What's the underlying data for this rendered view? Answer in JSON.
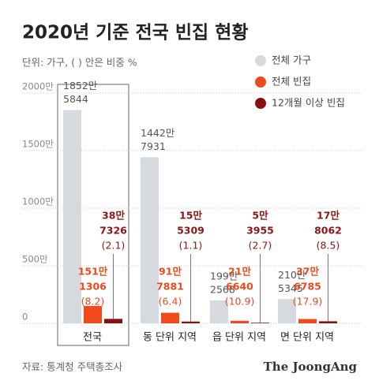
{
  "chart_data": {
    "type": "bar",
    "title": "2020년 기준 전국 빈집 현황",
    "subtitle": "단위: 가구, ( ) 안은 비중 %",
    "source": "자료: 통계청 주택총조사",
    "brand": "The JoongAng",
    "categories": [
      "전국",
      "동 단위 지역",
      "읍 단위 지역",
      "면 단위 지역"
    ],
    "ylim": [
      0,
      20000000
    ],
    "yticks": [
      {
        "value": 0,
        "label": "0"
      },
      {
        "value": 5000000,
        "label": "500만"
      },
      {
        "value": 10000000,
        "label": "1000만"
      },
      {
        "value": 15000000,
        "label": "1500만"
      },
      {
        "value": 20000000,
        "label": "2000만"
      }
    ],
    "grid": true,
    "series": [
      {
        "name": "전체 가구",
        "color": "#d6dadf",
        "label_color": "#555555",
        "values": [
          18525844,
          14427931,
          1992568,
          2105345
        ],
        "value_labels": [
          [
            "1852만",
            "5844"
          ],
          [
            "1442만",
            "7931"
          ],
          [
            "199만",
            "2568"
          ],
          [
            "210만",
            "5345"
          ]
        ]
      },
      {
        "name": "전체 빈집",
        "color": "#f04a1c",
        "label_color": "#f04a1c",
        "values": [
          1511306,
          917881,
          216640,
          376785
        ],
        "value_labels": [
          [
            "151만",
            "1306"
          ],
          [
            "91만",
            "7881"
          ],
          [
            "21만",
            "6640"
          ],
          [
            "37만",
            "6785"
          ]
        ],
        "shares": [
          8.2,
          6.4,
          10.9,
          17.9
        ],
        "share_labels": [
          "(8.2)",
          "(6.4)",
          "(10.9)",
          "(17.9)"
        ]
      },
      {
        "name": "12개월 이상 빈집",
        "color": "#8a1010",
        "label_color": "#8a1616",
        "values": [
          387326,
          155309,
          53955,
          178062
        ],
        "value_labels": [
          [
            "38만",
            "7326"
          ],
          [
            "15만",
            "5309"
          ],
          [
            "5만",
            "3955"
          ],
          [
            "17만",
            "8062"
          ]
        ],
        "shares": [
          2.1,
          1.1,
          2.7,
          8.5
        ],
        "share_labels": [
          "(2.1)",
          "(1.1)",
          "(2.7)",
          "(8.5)"
        ]
      }
    ]
  }
}
